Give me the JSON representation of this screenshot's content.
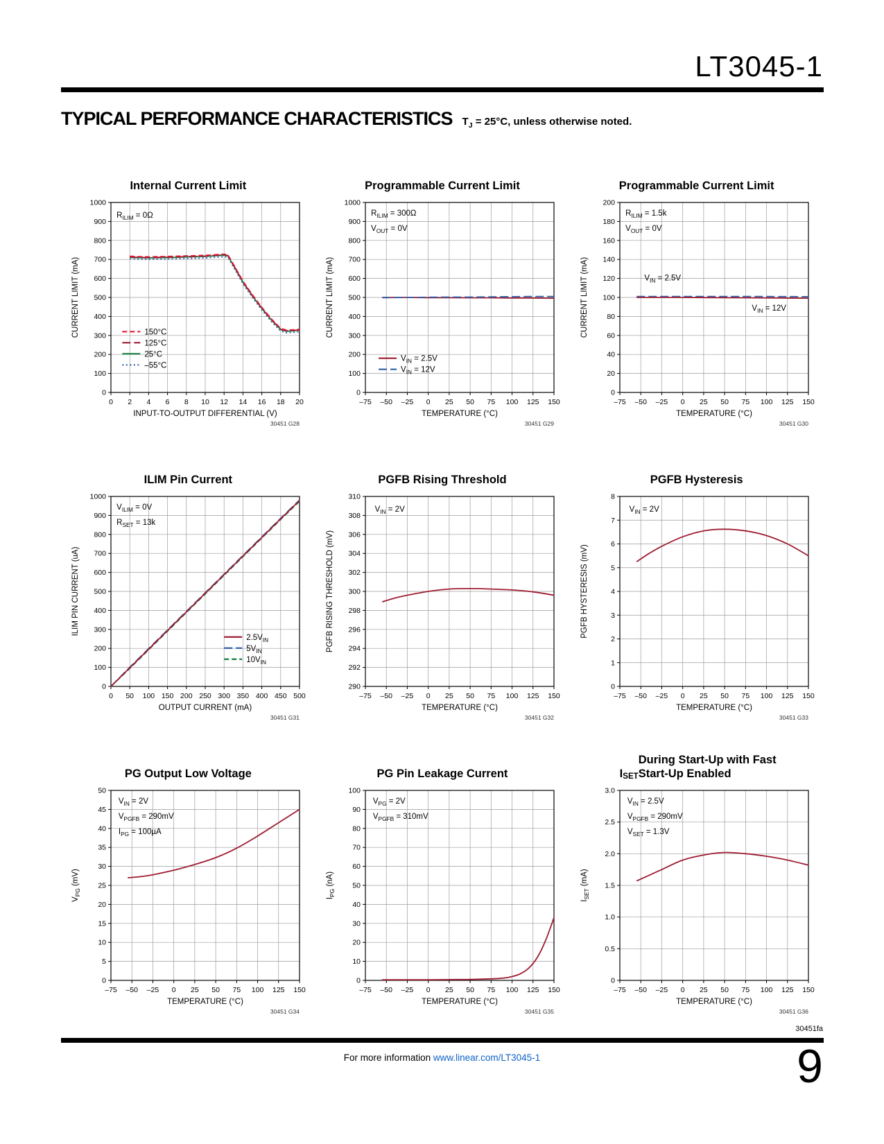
{
  "page": {
    "part_number": "LT3045-1",
    "section_title": "TYPICAL PERFORMANCE CHARACTERISTICS",
    "section_subtitle": "T~J~ = 25°C, unless otherwise noted.",
    "footer_code": "30451fa",
    "footer_info": "For more information",
    "footer_link": "www.linear.com/LT3045-1",
    "page_number": "9"
  },
  "colors": {
    "dark_red": "#9e1b32",
    "bright_red": "#e21836",
    "green": "#0e7c3f",
    "blue": "#2f5fa5",
    "grid": "#9c9c9c"
  },
  "chart_data": [
    {
      "type": "line",
      "title": "Internal Current Limit",
      "xlabel": "INPUT-TO-OUTPUT DIFFERENTIAL (V)",
      "ylabel": "CURRENT LIMIT (mA)",
      "xlim": [
        0,
        20
      ],
      "ylim": [
        0,
        1000
      ],
      "xticks": [
        0,
        2,
        4,
        6,
        8,
        10,
        12,
        14,
        16,
        18,
        20
      ],
      "yticks": [
        0,
        100,
        200,
        300,
        400,
        500,
        600,
        700,
        800,
        900,
        1000
      ],
      "smooth": false,
      "code": "30451 G28",
      "annotations": [
        {
          "text": "R~ILIM~ = 0Ω",
          "x": 0.03,
          "y": 0.08
        }
      ],
      "legend": {
        "x": 0.06,
        "y": 0.68,
        "items": [
          {
            "label": "150°C",
            "color": "#e21836",
            "dash": "dash"
          },
          {
            "label": "125°C",
            "color": "#9e1b32",
            "dash": "longdash"
          },
          {
            "label": "25°C",
            "color": "#0e7c3f",
            "dash": "solid"
          },
          {
            "label": "–55°C",
            "color": "#2f5fa5",
            "dash": "dot"
          }
        ]
      },
      "series": [
        {
          "name": "–55°C",
          "color": "#2f5fa5",
          "dash": "dot",
          "x": [
            2,
            3,
            4,
            5,
            6,
            7,
            8,
            9,
            10,
            11,
            12,
            12.4,
            13,
            14,
            15,
            16,
            17,
            18,
            18.6,
            19.3,
            20
          ],
          "y": [
            703,
            701,
            700,
            701,
            702,
            703,
            705,
            706,
            708,
            711,
            714,
            711,
            660,
            572,
            500,
            434,
            374,
            323,
            314,
            316,
            319
          ]
        },
        {
          "name": "25°C",
          "color": "#0e7c3f",
          "dash": "solid",
          "x": [
            2,
            3,
            4,
            5,
            6,
            7,
            8,
            9,
            10,
            11,
            12,
            12.4,
            13,
            14,
            15,
            16,
            17,
            18,
            18.6,
            19.3,
            20
          ],
          "y": [
            711,
            709,
            708,
            709,
            710,
            711,
            713,
            714,
            716,
            719,
            722,
            719,
            668,
            580,
            508,
            442,
            382,
            331,
            322,
            324,
            327
          ]
        },
        {
          "name": "125°C",
          "color": "#9e1b32",
          "dash": "longdash",
          "x": [
            2,
            3,
            4,
            5,
            6,
            7,
            8,
            9,
            10,
            11,
            12,
            12.4,
            13,
            14,
            15,
            16,
            17,
            18,
            18.6,
            19.3,
            20
          ],
          "y": [
            713,
            711,
            710,
            711,
            712,
            713,
            715,
            716,
            718,
            721,
            724,
            721,
            670,
            582,
            510,
            444,
            384,
            333,
            324,
            326,
            329
          ]
        },
        {
          "name": "150°C",
          "color": "#e21836",
          "dash": "dash",
          "x": [
            2,
            3,
            4,
            5,
            6,
            7,
            8,
            9,
            10,
            11,
            12,
            12.4,
            13,
            14,
            15,
            16,
            17,
            18,
            18.6,
            19.3,
            20
          ],
          "y": [
            717,
            715,
            714,
            715,
            716,
            717,
            719,
            720,
            722,
            725,
            728,
            725,
            674,
            586,
            514,
            448,
            388,
            337,
            328,
            330,
            333
          ]
        }
      ]
    },
    {
      "type": "line",
      "title": "Programmable Current Limit",
      "xlabel": "TEMPERATURE (°C)",
      "ylabel": "CURRENT LIMIT (mA)",
      "xlim": [
        -75,
        150
      ],
      "ylim": [
        0,
        1000
      ],
      "xticks": [
        -75,
        -50,
        -25,
        0,
        25,
        50,
        75,
        100,
        125,
        150
      ],
      "yticks": [
        0,
        100,
        200,
        300,
        400,
        500,
        600,
        700,
        800,
        900,
        1000
      ],
      "smooth": false,
      "code": "30451 G29",
      "annotations": [
        {
          "text": "R~ILIM~ = 300Ω",
          "x": 0.03,
          "y": 0.07
        },
        {
          "text": "V~OUT~ = 0V",
          "x": 0.03,
          "y": 0.15
        }
      ],
      "legend": {
        "x": 0.07,
        "y": 0.82,
        "items": [
          {
            "label": "V~IN~ = 2.5V",
            "color": "#9e1b32",
            "dash": "solid"
          },
          {
            "label": "V~IN~ = 12V",
            "color": "#2f5fa5",
            "dash": "longdash"
          }
        ]
      },
      "series": [
        {
          "name": "VIN = 2.5V",
          "color": "#9e1b32",
          "dash": "solid",
          "x": [
            -55,
            -50,
            -25,
            0,
            25,
            50,
            75,
            100,
            125,
            150
          ],
          "y": [
            500,
            500,
            500,
            499,
            499,
            498,
            498,
            497,
            497,
            496
          ]
        },
        {
          "name": "VIN = 12V",
          "color": "#2f5fa5",
          "dash": "longdash",
          "x": [
            -55,
            -50,
            -25,
            0,
            25,
            50,
            75,
            100,
            125,
            150
          ],
          "y": [
            499,
            499,
            500,
            501,
            502,
            502,
            503,
            504,
            505,
            505
          ]
        }
      ]
    },
    {
      "type": "line",
      "title": "Programmable Current Limit",
      "xlabel": "TEMPERATURE (°C)",
      "ylabel": "CURRENT LIMIT (mA)",
      "xlim": [
        -75,
        150
      ],
      "ylim": [
        0,
        200
      ],
      "xticks": [
        -75,
        -50,
        -25,
        0,
        25,
        50,
        75,
        100,
        125,
        150
      ],
      "yticks": [
        0,
        20,
        40,
        60,
        80,
        100,
        120,
        140,
        160,
        180,
        200
      ],
      "smooth": false,
      "code": "30451 G30",
      "annotations": [
        {
          "text": "R~ILIM~ = 1.5k",
          "x": 0.03,
          "y": 0.07
        },
        {
          "text": "V~OUT~ = 0V",
          "x": 0.03,
          "y": 0.15
        },
        {
          "text": "V~IN~ = 2.5V",
          "x": 0.13,
          "y": 0.41
        },
        {
          "text": "V~IN~ = 12V",
          "x": 0.7,
          "y": 0.57
        }
      ],
      "series": [
        {
          "name": "VIN = 12V",
          "color": "#2f5fa5",
          "dash": "longdash",
          "x": [
            -55,
            0,
            75,
            150
          ],
          "y": [
            101,
            101,
            101,
            100.8
          ]
        },
        {
          "name": "VIN = 2.5V",
          "color": "#9e1b32",
          "dash": "solid",
          "x": [
            -55,
            0,
            75,
            150
          ],
          "y": [
            100,
            100,
            99.6,
            99.2
          ]
        }
      ]
    },
    {
      "type": "line",
      "title": "ILIM Pin Current",
      "xlabel": "OUTPUT CURRENT (mA)",
      "ylabel": "ILIM PIN CURRENT (uA)",
      "xlim": [
        0,
        500
      ],
      "ylim": [
        0,
        1000
      ],
      "xticks": [
        0,
        50,
        100,
        150,
        200,
        250,
        300,
        350,
        400,
        450,
        500
      ],
      "yticks": [
        0,
        100,
        200,
        300,
        400,
        500,
        600,
        700,
        800,
        900,
        1000
      ],
      "smooth": false,
      "code": "30451 G31",
      "annotations": [
        {
          "text": "V~ILIM~ = 0V",
          "x": 0.03,
          "y": 0.07
        },
        {
          "text": "R~SET~ = 13k",
          "x": 0.03,
          "y": 0.15
        }
      ],
      "legend": {
        "x": 0.6,
        "y": 0.74,
        "items": [
          {
            "label": "2.5V~IN~",
            "color": "#9e1b32",
            "dash": "solid"
          },
          {
            "label": "5V~IN~",
            "color": "#2f5fa5",
            "dash": "longdash"
          },
          {
            "label": "10V~IN~",
            "color": "#0e7c3f",
            "dash": "dash"
          }
        ]
      },
      "series": [
        {
          "name": "10VIN",
          "color": "#0e7c3f",
          "dash": "dash",
          "x": [
            0,
            50,
            100,
            150,
            200,
            250,
            300,
            350,
            400,
            450,
            500
          ],
          "y": [
            0,
            95,
            193,
            291,
            389,
            487,
            585,
            683,
            781,
            879,
            974
          ]
        },
        {
          "name": "5VIN",
          "color": "#2f5fa5",
          "dash": "longdash",
          "x": [
            0,
            50,
            100,
            150,
            200,
            250,
            300,
            350,
            400,
            450,
            500
          ],
          "y": [
            0,
            101,
            199,
            297,
            395,
            493,
            591,
            689,
            787,
            885,
            981
          ]
        },
        {
          "name": "2.5VIN",
          "color": "#9e1b32",
          "dash": "solid",
          "x": [
            0,
            50,
            100,
            150,
            200,
            250,
            300,
            350,
            400,
            450,
            500
          ],
          "y": [
            0,
            98,
            196,
            294,
            392,
            490,
            588,
            686,
            784,
            882,
            978
          ]
        }
      ]
    },
    {
      "type": "line",
      "title": "PGFB Rising Threshold",
      "xlabel": "TEMPERATURE (°C)",
      "ylabel": "PGFB RISING THRESHOLD (mV)",
      "xlim": [
        -75,
        150
      ],
      "ylim": [
        290,
        310
      ],
      "xticks": [
        -75,
        -50,
        -25,
        0,
        25,
        50,
        75,
        100,
        125,
        150
      ],
      "yticks": [
        290,
        292,
        294,
        296,
        298,
        300,
        302,
        304,
        306,
        308,
        310
      ],
      "smooth": true,
      "code": "30451 G32",
      "annotations": [
        {
          "text": "V~IN~ = 2V",
          "x": 0.05,
          "y": 0.08
        }
      ],
      "series": [
        {
          "name": "VIN = 2V",
          "color": "#9e1b32",
          "dash": "solid",
          "x": [
            -55,
            -40,
            -25,
            0,
            25,
            50,
            75,
            100,
            125,
            150
          ],
          "y": [
            298.9,
            299.3,
            299.6,
            300.0,
            300.25,
            300.3,
            300.25,
            300.15,
            299.95,
            299.6
          ]
        }
      ]
    },
    {
      "type": "line",
      "title": "PGFB Hysteresis",
      "xlabel": "TEMPERATURE (°C)",
      "ylabel": "PGFB HYSTERESIS (mV)",
      "xlim": [
        -75,
        150
      ],
      "ylim": [
        0,
        8
      ],
      "xticks": [
        -75,
        -50,
        -25,
        0,
        25,
        50,
        75,
        100,
        125,
        150
      ],
      "yticks": [
        0,
        1,
        2,
        3,
        4,
        5,
        6,
        7,
        8
      ],
      "smooth": true,
      "code": "30451 G33",
      "annotations": [
        {
          "text": "V~IN~ = 2V",
          "x": 0.05,
          "y": 0.08
        }
      ],
      "series": [
        {
          "name": "VIN = 2V",
          "color": "#9e1b32",
          "dash": "solid",
          "x": [
            -55,
            -40,
            -25,
            0,
            25,
            50,
            75,
            100,
            125,
            150
          ],
          "y": [
            5.25,
            5.6,
            5.9,
            6.3,
            6.55,
            6.62,
            6.55,
            6.35,
            6.0,
            5.5
          ]
        }
      ]
    },
    {
      "type": "line",
      "title": "PG Output Low Voltage",
      "xlabel": "TEMPERATURE (°C)",
      "ylabel": "V~PG~ (mV)",
      "xlim": [
        -75,
        150
      ],
      "ylim": [
        0,
        50
      ],
      "xticks": [
        -75,
        -50,
        -25,
        0,
        25,
        50,
        75,
        100,
        125,
        150
      ],
      "yticks": [
        0,
        5,
        10,
        15,
        20,
        25,
        30,
        35,
        40,
        45,
        50
      ],
      "smooth": true,
      "code": "30451 G34",
      "annotations": [
        {
          "text": "V~IN~ = 2V",
          "x": 0.04,
          "y": 0.07
        },
        {
          "text": "V~PGFB~ = 290mV",
          "x": 0.04,
          "y": 0.15
        },
        {
          "text": "I~PG~ = 100µA",
          "x": 0.04,
          "y": 0.23
        }
      ],
      "series": [
        {
          "name": "VPG",
          "color": "#9e1b32",
          "dash": "solid",
          "x": [
            -55,
            -40,
            -25,
            0,
            25,
            50,
            75,
            100,
            125,
            150
          ],
          "y": [
            27,
            27.3,
            27.8,
            29,
            30.5,
            32.3,
            34.8,
            38,
            41.5,
            45
          ]
        }
      ]
    },
    {
      "type": "line",
      "title": "PG Pin Leakage Current",
      "xlabel": "TEMPERATURE (°C)",
      "ylabel": "I~PG~ (nA)",
      "xlim": [
        -75,
        150
      ],
      "ylim": [
        0,
        100
      ],
      "xticks": [
        -75,
        -50,
        -25,
        0,
        25,
        50,
        75,
        100,
        125,
        150
      ],
      "yticks": [
        0,
        10,
        20,
        30,
        40,
        50,
        60,
        70,
        80,
        90,
        100
      ],
      "smooth": true,
      "code": "30451 G35",
      "annotations": [
        {
          "text": "V~PG~ = 2V",
          "x": 0.04,
          "y": 0.07
        },
        {
          "text": "V~PGFB~ = 310mV",
          "x": 0.04,
          "y": 0.15
        }
      ],
      "series": [
        {
          "name": "IPG",
          "color": "#9e1b32",
          "dash": "solid",
          "x": [
            -55,
            -25,
            0,
            25,
            50,
            75,
            90,
            100,
            110,
            120,
            130,
            140,
            150
          ],
          "y": [
            0.3,
            0.3,
            0.3,
            0.4,
            0.5,
            0.8,
            1.2,
            2,
            3.5,
            6.5,
            12,
            21,
            33
          ]
        }
      ]
    },
    {
      "type": "line",
      "title": "I~SET~ During Start-Up with Fast\nStart-Up Enabled",
      "title_align": "left",
      "xlabel": "TEMPERATURE (°C)",
      "ylabel": "I~SET~ (mA)",
      "xlim": [
        -75,
        150
      ],
      "ylim": [
        0,
        3
      ],
      "xticks": [
        -75,
        -50,
        -25,
        0,
        25,
        50,
        75,
        100,
        125,
        150
      ],
      "yticks": [
        0,
        0.5,
        1,
        1.5,
        2,
        2.5,
        3
      ],
      "ytick_labels": [
        "0",
        "0.5",
        "1.0",
        "1.5",
        "2.0",
        "2.5",
        "3.0"
      ],
      "smooth": true,
      "code": "30451 G36",
      "annotations": [
        {
          "text": "V~IN~ = 2.5V",
          "x": 0.04,
          "y": 0.07
        },
        {
          "text": "V~PGFB~ = 290mV",
          "x": 0.04,
          "y": 0.15
        },
        {
          "text": "V~SET~ = 1.3V",
          "x": 0.04,
          "y": 0.23
        }
      ],
      "series": [
        {
          "name": "ISET",
          "color": "#9e1b32",
          "dash": "solid",
          "x": [
            -55,
            -40,
            -25,
            0,
            25,
            50,
            75,
            100,
            125,
            150
          ],
          "y": [
            1.57,
            1.66,
            1.75,
            1.9,
            1.98,
            2.02,
            2.0,
            1.96,
            1.9,
            1.82
          ]
        }
      ]
    }
  ]
}
